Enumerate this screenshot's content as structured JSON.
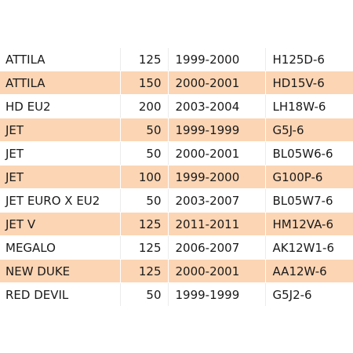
{
  "colors": {
    "highlight_row": "#fcd5b4",
    "background": "#ffffff",
    "text": "#1a1a1a"
  },
  "rows": [
    {
      "model": "ATTILA",
      "cc": "125",
      "years": "1999-2000",
      "code": "H125D-6",
      "highlighted": false
    },
    {
      "model": "ATTILA",
      "cc": "150",
      "years": "2000-2001",
      "code": "HD15V-6",
      "highlighted": true
    },
    {
      "model": "HD EU2",
      "cc": "200",
      "years": "2003-2004",
      "code": "LH18W-6",
      "highlighted": false
    },
    {
      "model": "JET",
      "cc": "50",
      "years": "1999-1999",
      "code": "G5J-6",
      "highlighted": true
    },
    {
      "model": "JET",
      "cc": "50",
      "years": "2000-2001",
      "code": "BL05W6-6",
      "highlighted": false
    },
    {
      "model": "JET",
      "cc": "100",
      "years": "1999-2000",
      "code": "G100P-6",
      "highlighted": true
    },
    {
      "model": "JET EURO X EU2",
      "cc": "50",
      "years": "2003-2007",
      "code": "BL05W7-6",
      "highlighted": false
    },
    {
      "model": "JET V",
      "cc": "125",
      "years": "2011-2011",
      "code": "HM12VA-6",
      "highlighted": true
    },
    {
      "model": "MEGALO",
      "cc": "125",
      "years": "2006-2007",
      "code": "AK12W1-6",
      "highlighted": false
    },
    {
      "model": "NEW DUKE",
      "cc": "125",
      "years": "2000-2001",
      "code": "AA12W-6",
      "highlighted": true
    },
    {
      "model": "RED DEVIL",
      "cc": "50",
      "years": "1999-1999",
      "code": "G5J2-6",
      "highlighted": false
    }
  ]
}
